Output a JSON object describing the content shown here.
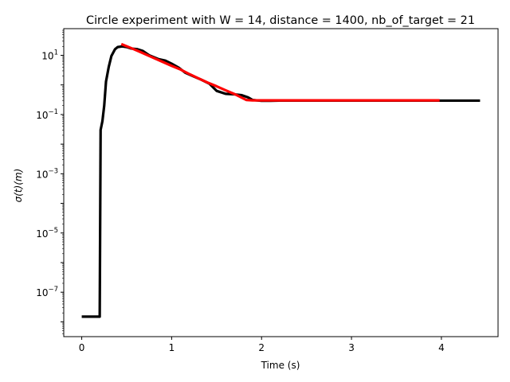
{
  "chart_data": {
    "type": "line",
    "title": "Circle experiment with W = 14, distance = 1400, nb_of_target = 21",
    "xlabel": "Time (s)",
    "ylabel": "σ(t)(m)",
    "xlim": [
      -0.2,
      4.63
    ],
    "ylim_log10": [
      -8.5,
      1.9
    ],
    "yscale": "log",
    "grid": false,
    "xticks": [
      0,
      1,
      2,
      3,
      4
    ],
    "xtick_labels": [
      "0",
      "1",
      "2",
      "3",
      "4"
    ],
    "yticks": [
      {
        "base": "10",
        "exp": "1",
        "log10": 1
      },
      {
        "base": "10",
        "exp": "−1",
        "log10": -1
      },
      {
        "base": "10",
        "exp": "−3",
        "log10": -3
      },
      {
        "base": "10",
        "exp": "−5",
        "log10": -5
      },
      {
        "base": "10",
        "exp": "−7",
        "log10": -7
      }
    ],
    "series": [
      {
        "color": "#000000",
        "points": [
          [
            0.0,
            1.5e-08
          ],
          [
            0.2,
            1.5e-08
          ],
          [
            0.2,
            1.5e-08
          ],
          [
            0.21,
            0.03
          ],
          [
            0.23,
            0.06
          ],
          [
            0.25,
            0.2
          ],
          [
            0.27,
            1.3
          ],
          [
            0.3,
            4.0
          ],
          [
            0.33,
            9.5
          ],
          [
            0.37,
            16
          ],
          [
            0.4,
            19
          ],
          [
            0.45,
            20
          ],
          [
            0.5,
            19
          ],
          [
            0.55,
            17
          ],
          [
            0.62,
            16
          ],
          [
            0.68,
            14
          ],
          [
            0.75,
            10
          ],
          [
            0.85,
            7.5
          ],
          [
            0.93,
            6.6
          ],
          [
            1.0,
            5.2
          ],
          [
            1.08,
            3.8
          ],
          [
            1.15,
            2.6
          ],
          [
            1.25,
            1.9
          ],
          [
            1.33,
            1.5
          ],
          [
            1.42,
            1.1
          ],
          [
            1.5,
            0.63
          ],
          [
            1.6,
            0.5
          ],
          [
            1.7,
            0.48
          ],
          [
            1.78,
            0.45
          ],
          [
            1.85,
            0.38
          ],
          [
            1.9,
            0.31
          ],
          [
            2.0,
            0.29
          ],
          [
            2.1,
            0.29
          ],
          [
            2.2,
            0.295
          ],
          [
            2.5,
            0.295
          ],
          [
            3.0,
            0.295
          ],
          [
            3.5,
            0.295
          ],
          [
            4.0,
            0.295
          ],
          [
            4.43,
            0.295
          ]
        ]
      },
      {
        "color": "#ff0000",
        "points": [
          [
            0.44,
            24
          ],
          [
            0.55,
            17.5
          ],
          [
            0.65,
            13
          ],
          [
            0.75,
            9.5
          ],
          [
            0.9,
            6.0
          ],
          [
            1.0,
            4.4
          ],
          [
            1.1,
            3.3
          ],
          [
            1.2,
            2.3
          ],
          [
            1.3,
            1.65
          ],
          [
            1.4,
            1.2
          ],
          [
            1.5,
            0.9
          ],
          [
            1.6,
            0.66
          ],
          [
            1.7,
            0.49
          ],
          [
            1.83,
            0.31
          ],
          [
            1.9,
            0.3
          ],
          [
            2.0,
            0.3
          ],
          [
            2.2,
            0.3
          ],
          [
            2.5,
            0.3
          ],
          [
            3.0,
            0.3
          ],
          [
            3.5,
            0.3
          ],
          [
            3.98,
            0.3
          ]
        ]
      }
    ]
  }
}
